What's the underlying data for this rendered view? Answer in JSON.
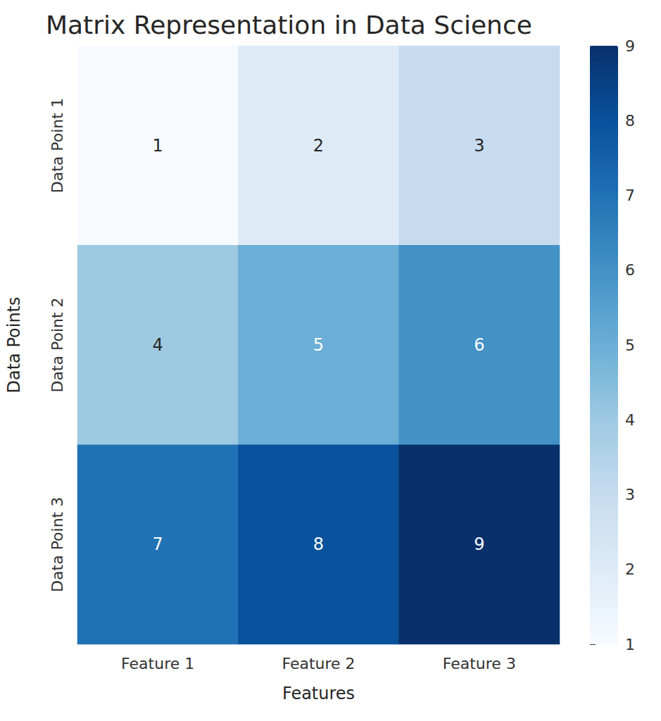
{
  "chart_data": {
    "type": "heatmap",
    "title": "Matrix Representation in Data Science",
    "x_label": "Features",
    "y_label": "Data Points",
    "x_categories": [
      "Feature 1",
      "Feature 2",
      "Feature 3"
    ],
    "y_categories": [
      "Data Point 1",
      "Data Point 2",
      "Data Point 3"
    ],
    "cells": [
      [
        1,
        2,
        3
      ],
      [
        4,
        5,
        6
      ],
      [
        7,
        8,
        9
      ]
    ],
    "color": "Blues",
    "colorbar_range": [
      1,
      9
    ],
    "colorbar_ticks": [
      1,
      2,
      3,
      4,
      5,
      6,
      7,
      8,
      9
    ],
    "data_labels": true
  }
}
